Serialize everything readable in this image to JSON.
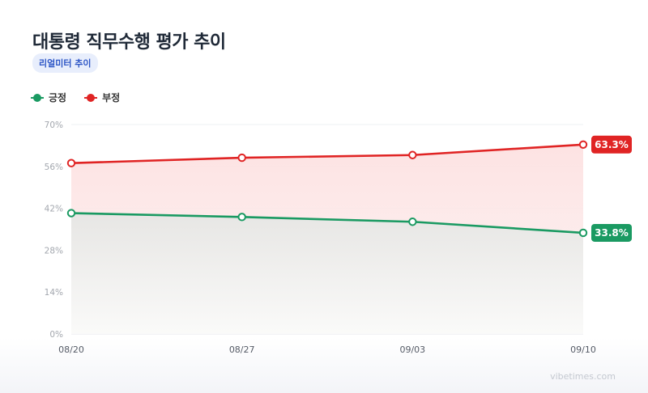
{
  "header": {
    "title": "대통령 직무수행 평가 추이",
    "badge": "리얼미터 추이"
  },
  "watermark": "vibetimes.com",
  "colors": {
    "positive": "#1a9a62",
    "negative": "#e02424",
    "badge_bg": "#e8eefc",
    "badge_text": "#2d56c6"
  },
  "chart_data": {
    "type": "line",
    "categories": [
      "08/20",
      "08/27",
      "09/03",
      "09/10"
    ],
    "series": [
      {
        "name": "긍정",
        "color": "#1a9a62",
        "values": [
          40.4,
          39.1,
          37.5,
          33.8
        ]
      },
      {
        "name": "부정",
        "color": "#e02424",
        "values": [
          57.1,
          58.9,
          59.8,
          63.3
        ]
      }
    ],
    "yticks": [
      "70%",
      "56%",
      "42%",
      "28%",
      "14%",
      "0%"
    ],
    "ylim": [
      0,
      70
    ],
    "end_labels": [
      "33.8%",
      "63.3%"
    ],
    "grid": true,
    "legend": "top-left"
  }
}
